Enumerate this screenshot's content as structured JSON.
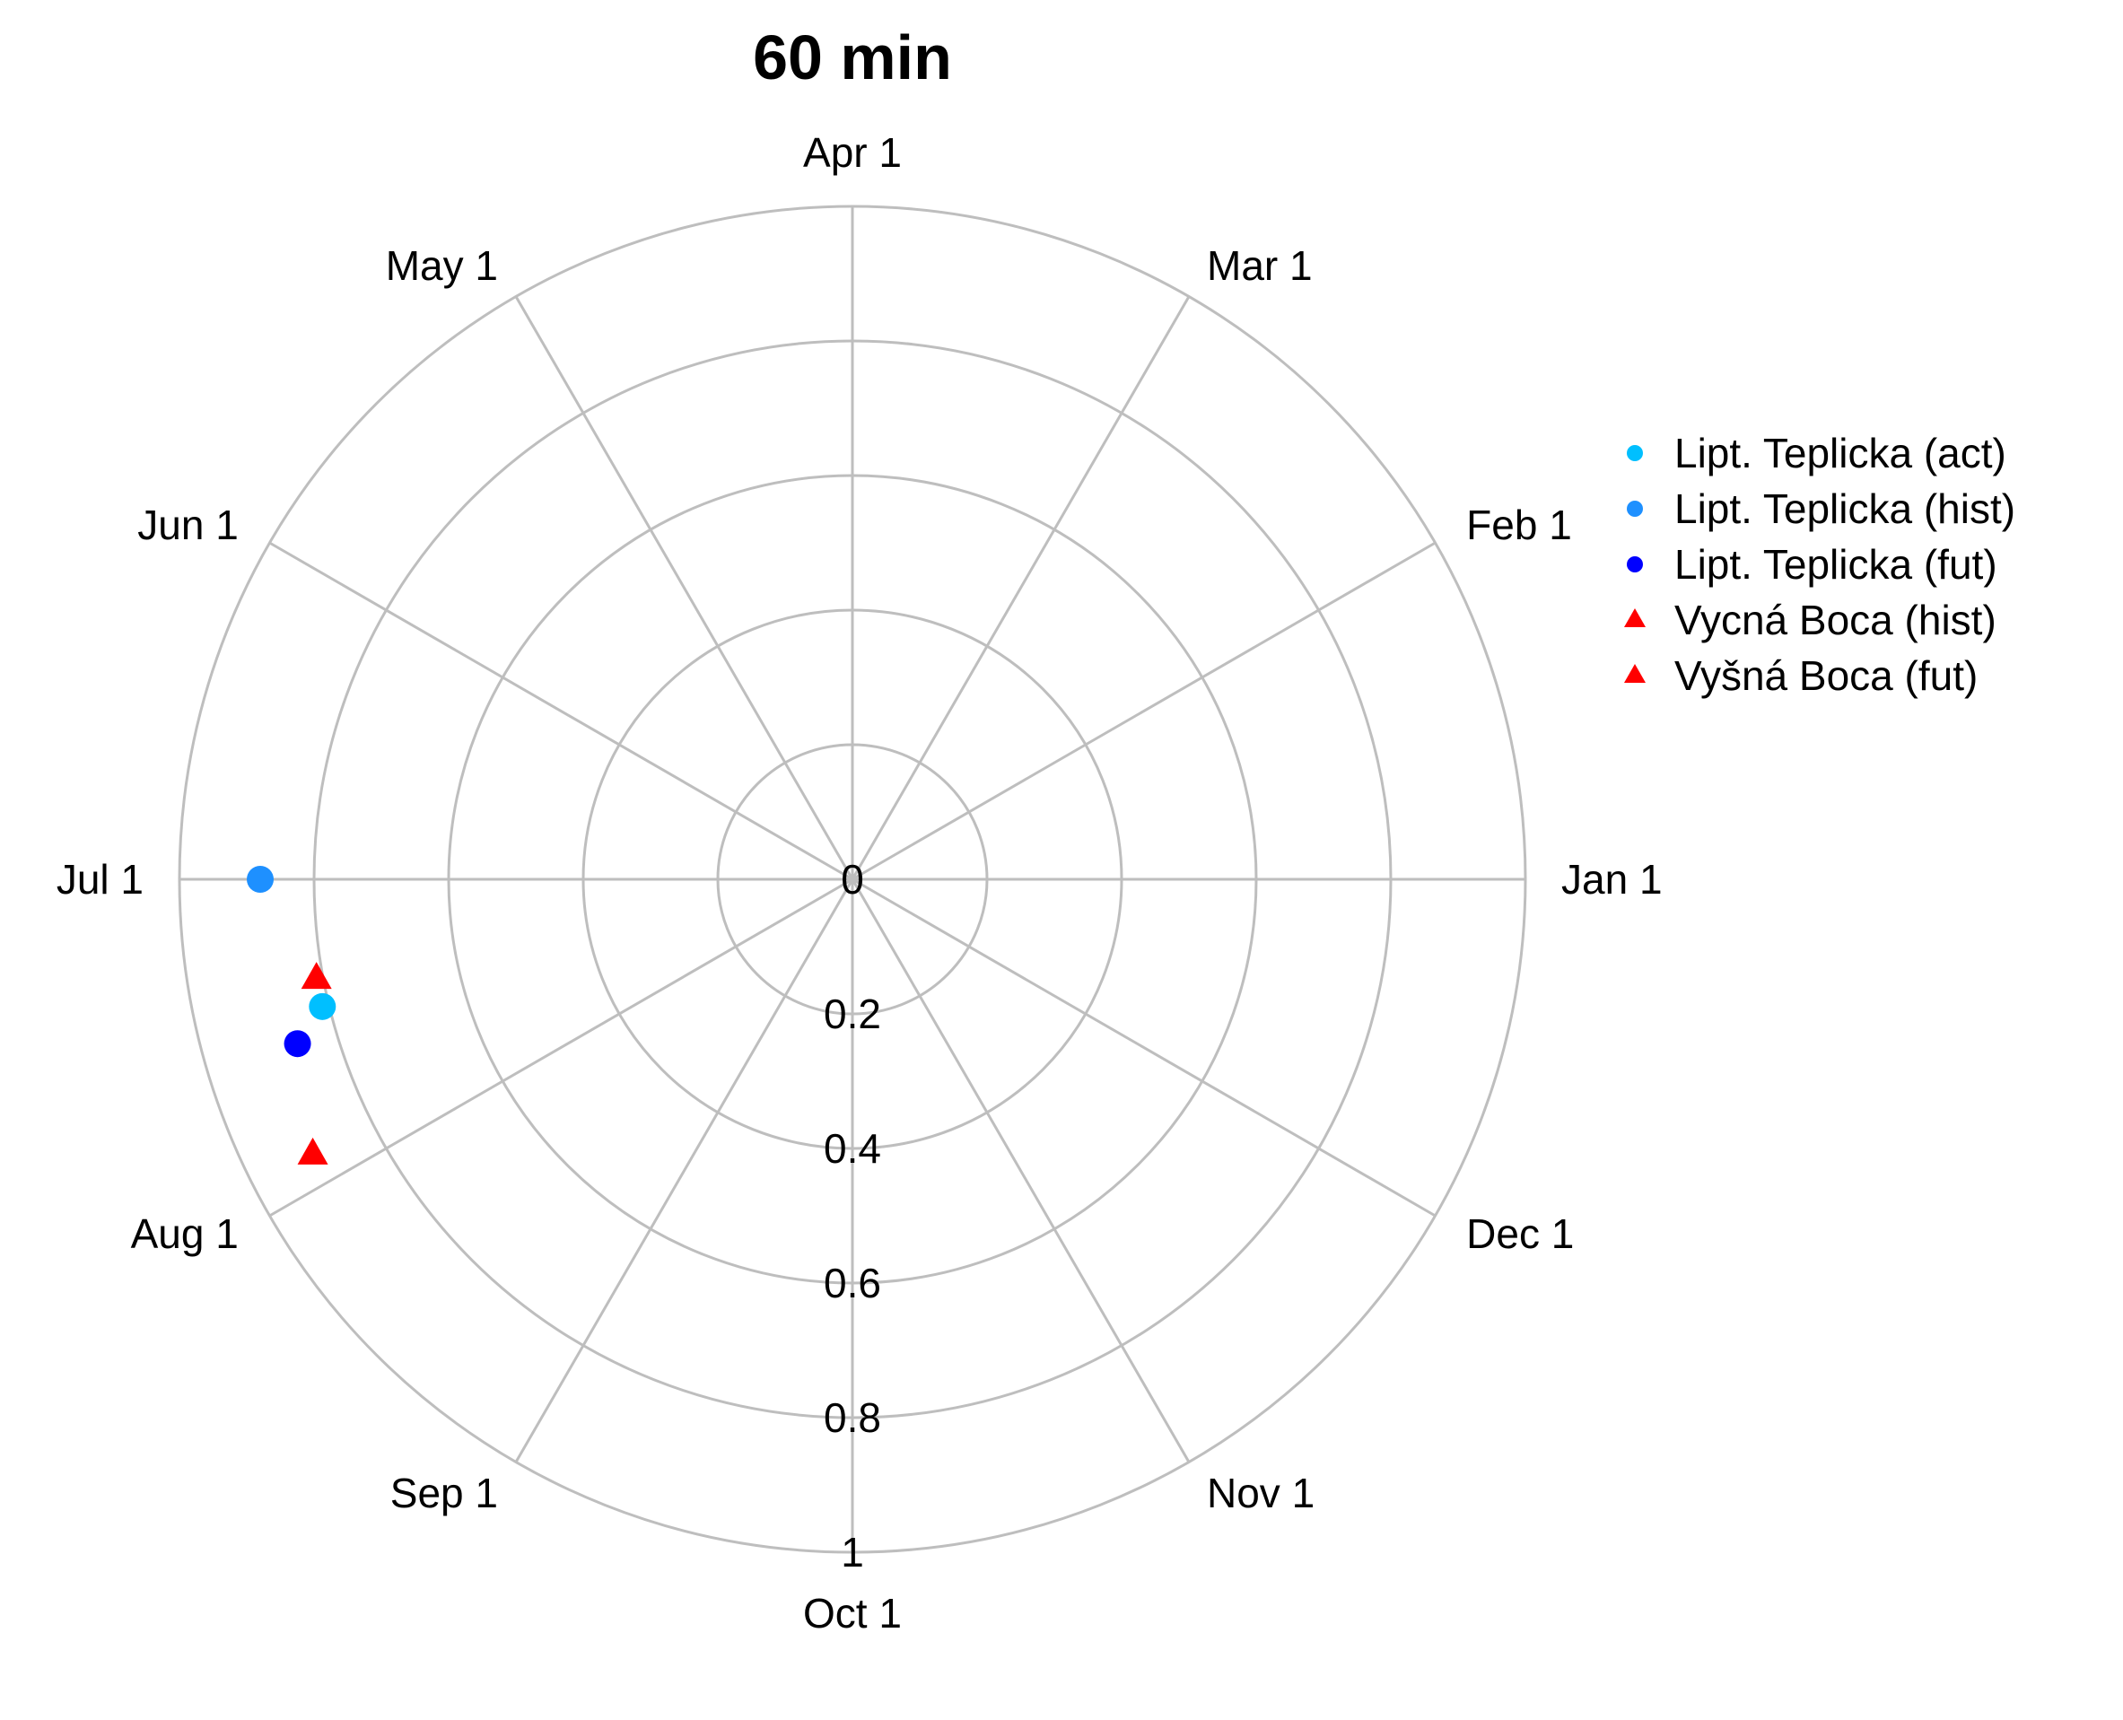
{
  "chart_data": {
    "type": "scatter",
    "coordinate_system": "polar",
    "title": "60 min",
    "angular_axis": {
      "labels": [
        "Jan 1",
        "Feb 1",
        "Mar 1",
        "Apr 1",
        "May 1",
        "Jun 1",
        "Jul 1",
        "Aug 1",
        "Sep 1",
        "Oct 1",
        "Nov 1",
        "Dec 1"
      ],
      "direction": "counterclockwise",
      "zero_at": "right"
    },
    "radial_axis": {
      "range": [
        0,
        1
      ],
      "ticks": [
        "0",
        "0.2",
        "0.4",
        "0.6",
        "0.8",
        "1"
      ],
      "tick_values": [
        0,
        0.2,
        0.4,
        0.6,
        0.8,
        1
      ],
      "grid": true
    },
    "legend_position": "right",
    "series": [
      {
        "name": "Lipt. Teplicka (act)",
        "color": "#00bfff",
        "marker": "circle",
        "points": [
          {
            "month_position": 6.45,
            "r": 0.81
          }
        ]
      },
      {
        "name": "Lipt. Teplicka (hist)",
        "color": "#1e90ff",
        "marker": "circle",
        "points": [
          {
            "month_position": 6.0,
            "r": 0.88
          }
        ]
      },
      {
        "name": "Lipt. Teplicka (fut)",
        "color": "#0000ff",
        "marker": "circle",
        "points": [
          {
            "month_position": 6.55,
            "r": 0.86
          }
        ]
      },
      {
        "name": "Vycná Boca (hist)",
        "color": "#ff0000",
        "marker": "triangle",
        "points": [
          {
            "month_position": 6.35,
            "r": 0.81
          }
        ]
      },
      {
        "name": "Vyšná Boca (fut)",
        "color": "#ff0000",
        "marker": "triangle",
        "points": [
          {
            "month_position": 6.9,
            "r": 0.9
          }
        ]
      }
    ]
  }
}
